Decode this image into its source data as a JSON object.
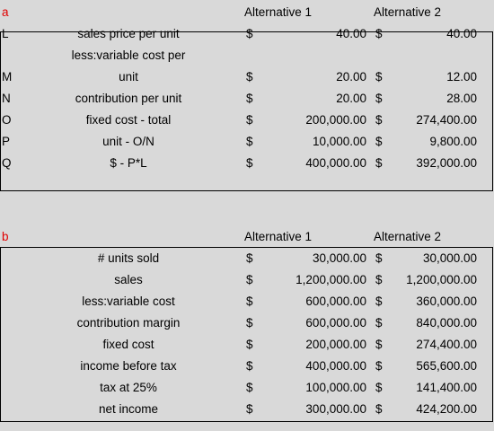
{
  "part_a": {
    "tag": "a",
    "headers": [
      "Alternative 1",
      "Alternative 2"
    ],
    "rows": [
      {
        "id": "L",
        "label": "sales price per unit",
        "v1": "40.00",
        "v2": "40.00",
        "d1": "$",
        "d2": "$"
      },
      {
        "id": "",
        "label": "less:variable cost per",
        "v1": "",
        "v2": "",
        "d1": "",
        "d2": ""
      },
      {
        "id": "M",
        "label": "unit",
        "v1": "20.00",
        "v2": "12.00",
        "d1": "$",
        "d2": "$"
      },
      {
        "id": "N",
        "label": "contribution per unit",
        "v1": "20.00",
        "v2": "28.00",
        "d1": "$",
        "d2": "$"
      },
      {
        "id": "O",
        "label": "fixed cost - total",
        "v1": "200,000.00",
        "v2": "274,400.00",
        "d1": "$",
        "d2": "$"
      },
      {
        "id": "P",
        "label": "unit - O/N",
        "v1": "10,000.00",
        "v2": "9,800.00",
        "d1": "$",
        "d2": "$"
      },
      {
        "id": "Q",
        "label": "$ - P*L",
        "v1": "400,000.00",
        "v2": "392,000.00",
        "d1": "$",
        "d2": "$"
      }
    ]
  },
  "part_b": {
    "tag": "b",
    "headers": [
      "Alternative 1",
      "Alternative 2"
    ],
    "rows": [
      {
        "label": "# units sold",
        "v1": "30,000.00",
        "v2": "30,000.00",
        "d1": "$",
        "d2": "$"
      },
      {
        "label": "sales",
        "v1": "1,200,000.00",
        "v2": "1,200,000.00",
        "d1": "$",
        "d2": "$"
      },
      {
        "label": "less:variable cost",
        "v1": "600,000.00",
        "v2": "360,000.00",
        "d1": "$",
        "d2": "$"
      },
      {
        "label": "contribution margin",
        "v1": "600,000.00",
        "v2": "840,000.00",
        "d1": "$",
        "d2": "$"
      },
      {
        "label": "fixed cost",
        "v1": "200,000.00",
        "v2": "274,400.00",
        "d1": "$",
        "d2": "$"
      },
      {
        "label": "income before tax",
        "v1": "400,000.00",
        "v2": "565,600.00",
        "d1": "$",
        "d2": "$"
      },
      {
        "label": "tax at 25%",
        "v1": "100,000.00",
        "v2": "141,400.00",
        "d1": "$",
        "d2": "$"
      },
      {
        "label": "net income",
        "v1": "300,000.00",
        "v2": "424,200.00",
        "d1": "$",
        "d2": "$"
      }
    ]
  }
}
